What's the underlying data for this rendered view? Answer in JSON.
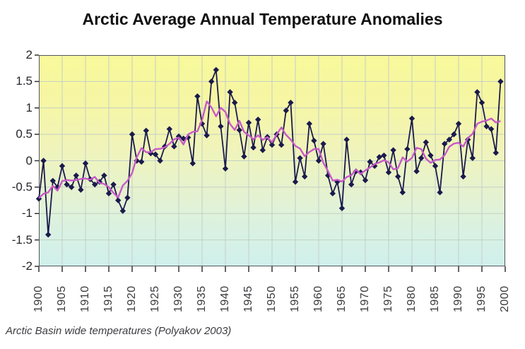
{
  "title": "Arctic Average Annual Temperature Anomalies",
  "caption": "Arctic Basin wide temperatures (Polyakov 2003)",
  "colors": {
    "annual_series": "#1a1a4d",
    "smoothed_series": "#c85ac8",
    "gridline": "#c3cfc6",
    "plot_border": "#55565a",
    "tick": "#333333",
    "title_text": "#101010",
    "axis_text": "#333333",
    "plot_bg_top": "#f8f89b",
    "plot_bg_bottom": "#d0f0ec",
    "page_bg": "#ffffff"
  },
  "chart_data": {
    "type": "line",
    "title": "Arctic Average Annual Temperature Anomalies",
    "xlabel": "",
    "ylabel": "",
    "xlim": [
      1900,
      2000
    ],
    "ylim": [
      -2,
      2
    ],
    "grid": true,
    "legend_position": "none",
    "y_ticks": [
      2,
      1.5,
      1,
      0.5,
      0,
      -0.5,
      -1,
      -1.5,
      -2
    ],
    "y_tick_labels": [
      "2",
      "1.5",
      "1",
      "0.5",
      "0",
      "-0.5",
      "-1",
      "-1.5",
      "-2"
    ],
    "x_ticks": [
      1900,
      1905,
      1910,
      1915,
      1920,
      1925,
      1930,
      1935,
      1940,
      1945,
      1950,
      1955,
      1960,
      1965,
      1970,
      1975,
      1980,
      1985,
      1990,
      1995,
      2000
    ],
    "x_tick_labels": [
      "1900",
      "1905",
      "1910",
      "1915",
      "1920",
      "1925",
      "1930",
      "1935",
      "1940",
      "1945",
      "1950",
      "1955",
      "1960",
      "1965",
      "1970",
      "1975",
      "1980",
      "1985",
      "1990",
      "1995",
      "2000"
    ],
    "x_start_year": 1900,
    "series": [
      {
        "name": "annual-anomaly",
        "marker": "diamond",
        "values": [
          -0.72,
          0.0,
          -1.4,
          -0.38,
          -0.5,
          -0.1,
          -0.45,
          -0.5,
          -0.28,
          -0.55,
          -0.05,
          -0.35,
          -0.45,
          -0.4,
          -0.28,
          -0.62,
          -0.45,
          -0.75,
          -0.95,
          -0.7,
          0.5,
          0.0,
          -0.02,
          0.57,
          0.14,
          0.12,
          0.0,
          0.27,
          0.6,
          0.27,
          0.46,
          0.42,
          0.44,
          -0.05,
          1.22,
          0.7,
          0.48,
          1.5,
          1.72,
          0.65,
          -0.15,
          1.3,
          1.1,
          0.58,
          0.08,
          0.72,
          0.25,
          0.78,
          0.2,
          0.45,
          0.3,
          0.5,
          0.3,
          0.95,
          1.1,
          -0.4,
          0.05,
          -0.3,
          0.7,
          0.38,
          0.0,
          0.32,
          -0.28,
          -0.62,
          -0.4,
          -0.9,
          0.4,
          -0.45,
          -0.2,
          -0.22,
          -0.37,
          -0.02,
          -0.1,
          0.07,
          0.1,
          -0.22,
          0.2,
          -0.3,
          -0.6,
          0.22,
          0.8,
          -0.2,
          0.05,
          0.35,
          0.1,
          -0.1,
          -0.6,
          0.32,
          0.4,
          0.5,
          0.7,
          -0.3,
          0.4,
          0.05,
          1.3,
          1.1,
          0.65,
          0.6,
          0.15,
          1.5
        ]
      },
      {
        "name": "running-mean",
        "marker": "none",
        "derived_from": "annual-anomaly",
        "smoothing_window": 5
      }
    ]
  }
}
